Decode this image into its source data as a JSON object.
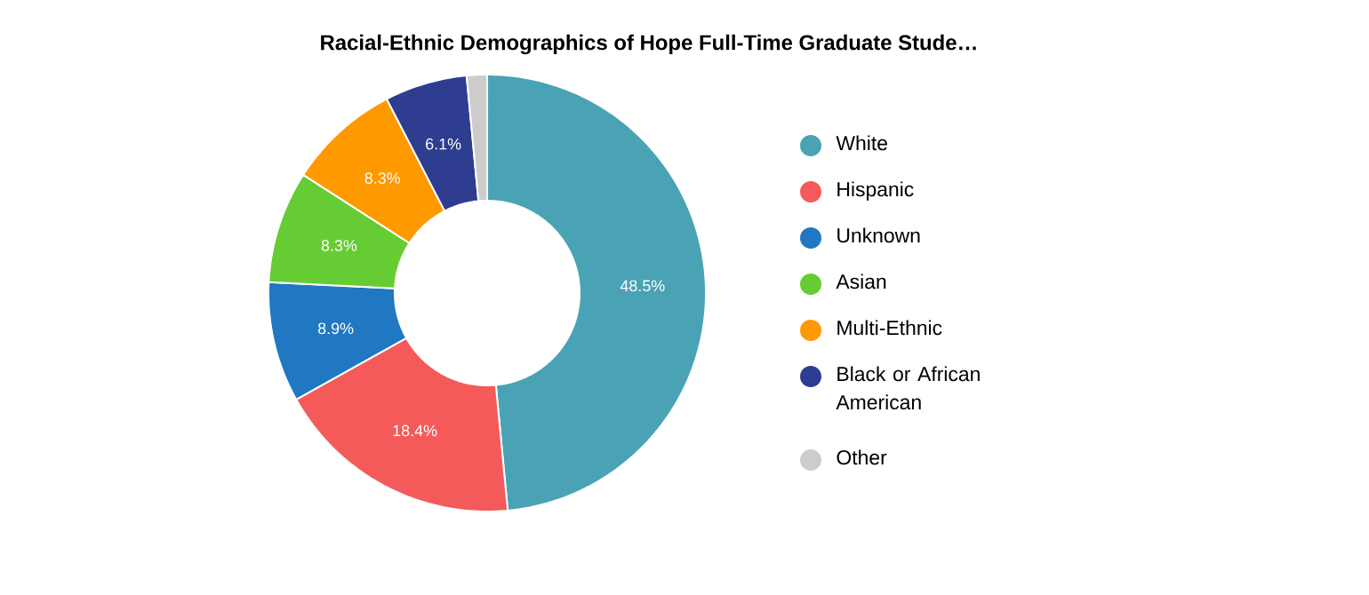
{
  "chart_data": {
    "type": "donut",
    "title": "Racial-Ethnic Demographics of Hope Full-Time Graduate Stude…",
    "categories": [
      "White",
      "Hispanic",
      "Unknown",
      "Asian",
      "Multi-Ethnic",
      "Black or African American",
      "Other"
    ],
    "values": [
      48.5,
      18.4,
      8.9,
      8.3,
      8.3,
      6.1,
      1.5
    ],
    "value_labels": [
      "48.5%",
      "18.4%",
      "8.9%",
      "8.3%",
      "8.3%",
      "6.1%",
      null
    ],
    "colors": [
      "#4aa3b5",
      "#f55a5a",
      "#1f78c1",
      "#66cc33",
      "#ff9900",
      "#2e3d8f",
      "#cccccc"
    ],
    "legend": "right"
  }
}
